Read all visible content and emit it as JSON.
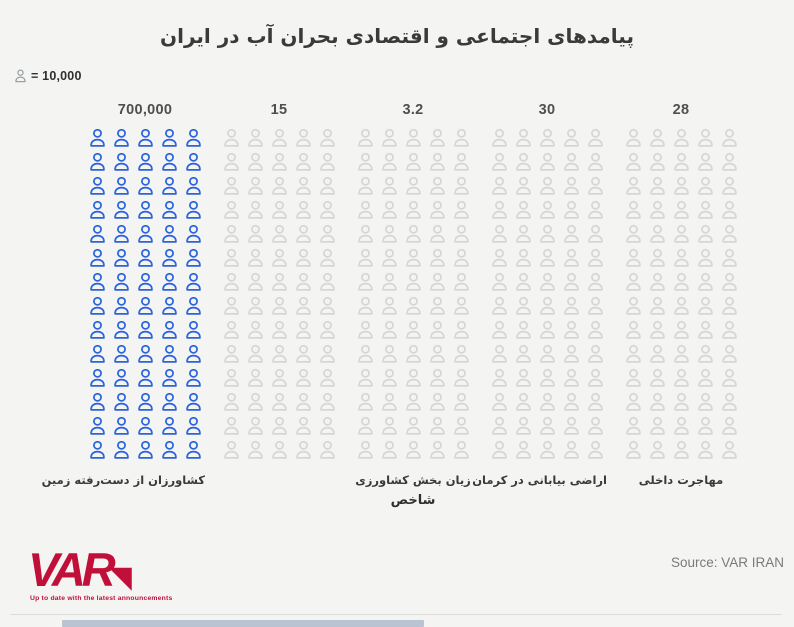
{
  "title": "پیامدهای اجتماعی و اقتصادی بحران آب در ایران",
  "legend": {
    "unit_label": "= 10,000"
  },
  "chart": {
    "xlabel": "شاخص",
    "grid": {
      "rows": 14,
      "cols": 5
    },
    "columns": [
      {
        "value_label": "700,000",
        "label": "کشاورزان از دست‌رفته زمین",
        "icon_color": "#2c64d9"
      },
      {
        "value_label": "15",
        "label": "",
        "icon_color": "#d6d6d6"
      },
      {
        "value_label": "3.2",
        "label": "زیان بخش کشاورزی",
        "icon_color": "#d6d6d6"
      },
      {
        "value_label": "30",
        "label": "اراضی بیابانی در کرمان",
        "icon_color": "#d6d6d6"
      },
      {
        "value_label": "28",
        "label": "مهاجرت داخلی",
        "icon_color": "#d6d6d6"
      }
    ]
  },
  "chart_data": {
    "type": "pictogram",
    "title": "پیامدهای اجتماعی و اقتصادی بحران آب در ایران",
    "xlabel": "شاخص",
    "categories": [
      "کشاورزان از دست‌رفته زمین",
      "",
      "زیان بخش کشاورزی",
      "اراضی بیابانی در کرمان",
      "مهاجرت داخلی"
    ],
    "values": [
      700000,
      15,
      3.2,
      30,
      28
    ],
    "value_labels": [
      "700,000",
      "15",
      "3.2",
      "30",
      "28"
    ],
    "unit_per_icon": 10000,
    "unit_legend": "= 10,000",
    "icon_grid": {
      "rows": 14,
      "cols": 5,
      "icons_per_column": 70
    },
    "highlight_column_index": 0,
    "colors": {
      "highlight": "#2c64d9",
      "muted": "#d6d6d6",
      "legend_icon": "#9aa0a6"
    },
    "legend_position": "top-left",
    "grid_lines": false
  },
  "footer": {
    "source": "Source: VAR IRAN",
    "logo_text": "VAR",
    "logo_tagline": "Up to date with the latest announcements",
    "logo_color": "#c0103a",
    "bottom_bar_color": "#b9c3d2"
  }
}
